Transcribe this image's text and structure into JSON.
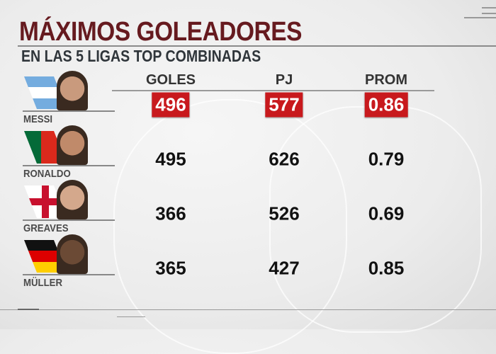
{
  "title": "MÁXIMOS GOLEADORES",
  "subtitle": "EN LAS 5 LIGAS TOP COMBINADAS",
  "columns": [
    "GOLES",
    "PJ",
    "PROM"
  ],
  "highlight_color": "#c8191d",
  "title_color": "#661a1f",
  "rows": [
    {
      "name": "MESSI",
      "flag": "argentina-flag",
      "values": [
        "496",
        "577",
        "0.86"
      ],
      "highlighted": true
    },
    {
      "name": "RONALDO",
      "flag": "portugal-flag",
      "values": [
        "495",
        "626",
        "0.79"
      ],
      "highlighted": false
    },
    {
      "name": "GREAVES",
      "flag": "england-flag",
      "values": [
        "366",
        "526",
        "0.69"
      ],
      "highlighted": false
    },
    {
      "name": "MÜLLER",
      "flag": "germany-flag",
      "values": [
        "365",
        "427",
        "0.85"
      ],
      "highlighted": false
    }
  ],
  "chart_data": {
    "type": "table",
    "title": "MÁXIMOS GOLEADORES",
    "subtitle": "EN LAS 5 LIGAS TOP COMBINADAS",
    "columns": [
      "GOLES",
      "PJ",
      "PROM"
    ],
    "row_labels": [
      "MESSI",
      "RONALDO",
      "GREAVES",
      "MÜLLER"
    ],
    "values": [
      [
        496,
        577,
        0.86
      ],
      [
        495,
        626,
        0.79
      ],
      [
        366,
        526,
        0.69
      ],
      [
        365,
        427,
        0.85
      ]
    ]
  }
}
